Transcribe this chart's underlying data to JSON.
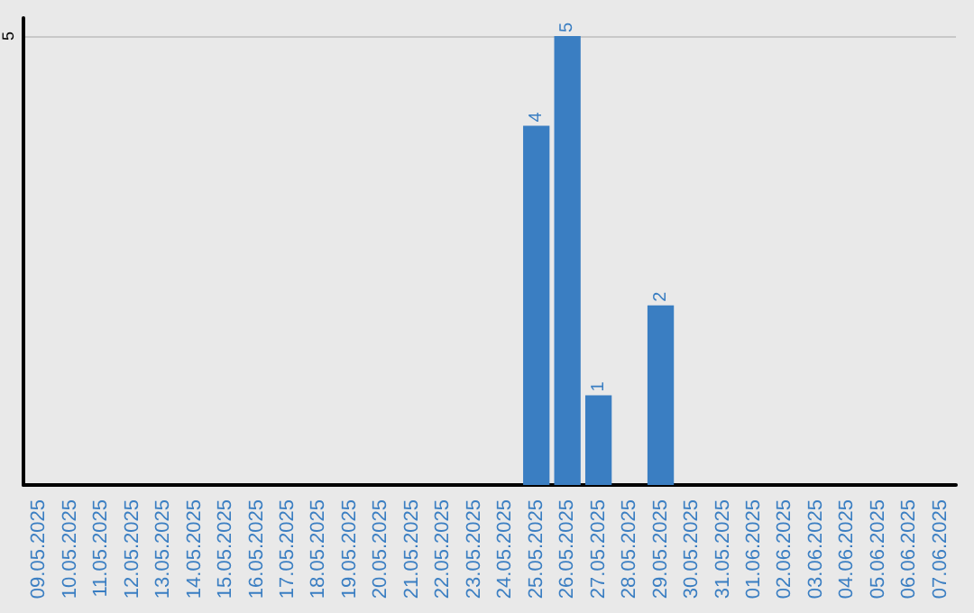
{
  "chart_data": {
    "type": "bar",
    "categories": [
      "09.05.2025",
      "10.05.2025",
      "11.05.2025",
      "12.05.2025",
      "13.05.2025",
      "14.05.2025",
      "15.05.2025",
      "16.05.2025",
      "17.05.2025",
      "18.05.2025",
      "19.05.2025",
      "20.05.2025",
      "21.05.2025",
      "22.05.2025",
      "23.05.2025",
      "24.05.2025",
      "25.05.2025",
      "26.05.2025",
      "27.05.2025",
      "28.05.2025",
      "29.05.2025",
      "30.05.2025",
      "31.05.2025",
      "01.06.2025",
      "02.06.2025",
      "03.06.2025",
      "04.06.2025",
      "05.06.2025",
      "06.06.2025",
      "07.06.2025"
    ],
    "values": [
      null,
      null,
      null,
      null,
      null,
      null,
      null,
      null,
      null,
      null,
      null,
      null,
      null,
      null,
      null,
      null,
      4,
      5,
      1,
      null,
      2,
      null,
      null,
      null,
      null,
      null,
      null,
      null,
      null,
      null
    ],
    "color": "#3a7ec2",
    "ylim": [
      0,
      5.2
    ],
    "yticks": [
      5
    ],
    "grid": "y",
    "data_labels": true
  }
}
